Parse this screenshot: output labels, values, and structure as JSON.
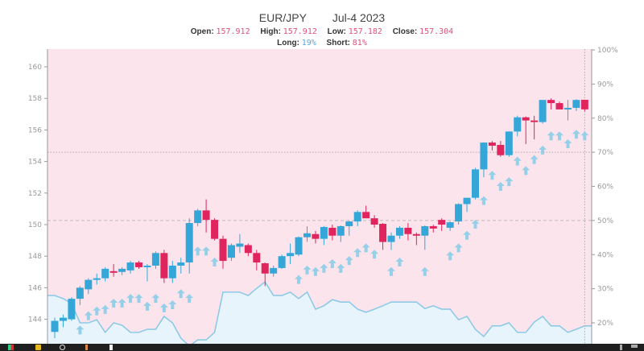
{
  "header": {
    "symbol": "EUR/JPY",
    "date": "Jul-4 2023",
    "open_label": "Open:",
    "open": "157.912",
    "high_label": "High:",
    "high": "157.912",
    "low_label": "Low:",
    "low": "157.182",
    "close_label": "Close:",
    "close": "157.304",
    "long_label": "Long:",
    "long": "19%",
    "short_label": "Short:",
    "short": "81%"
  },
  "colors": {
    "up": "#34a6d8",
    "down": "#e0245e",
    "short_bg": "#fce4ec",
    "long_bg": "#e8f4fb",
    "sentiment_line": "#8ecae6",
    "signal": "#95cfe8"
  },
  "chart_data": {
    "type": "candlestick",
    "title": "EUR/JPY",
    "y_left": {
      "ticks": [
        144,
        146,
        148,
        150,
        152,
        154,
        156,
        158,
        160
      ],
      "tick_labels": [
        "144",
        "146",
        "148",
        "150",
        "152",
        "154",
        "156",
        "158",
        "160"
      ]
    },
    "y_right": {
      "ticks": [
        20,
        30,
        40,
        50,
        60,
        70,
        80,
        90,
        100
      ],
      "tick_labels": [
        "20%",
        "30%",
        "40%",
        "50%",
        "60%",
        "70%",
        "80%",
        "90%",
        "100%"
      ]
    },
    "reference_lines_pct": [
      50,
      70
    ],
    "candles": [
      [
        143.2,
        144.1,
        142.8,
        143.9
      ],
      [
        143.9,
        144.3,
        143.5,
        144.1
      ],
      [
        144.0,
        145.4,
        143.9,
        145.3
      ],
      [
        145.3,
        146.1,
        144.9,
        146.0
      ],
      [
        145.9,
        146.6,
        145.6,
        146.5
      ],
      [
        146.5,
        146.9,
        146.2,
        146.6
      ],
      [
        146.6,
        147.3,
        146.4,
        147.2
      ],
      [
        147.05,
        147.5,
        146.7,
        146.95
      ],
      [
        147.0,
        147.3,
        146.8,
        147.2
      ],
      [
        147.1,
        147.7,
        146.9,
        147.6
      ],
      [
        147.6,
        147.7,
        147.2,
        147.3
      ],
      [
        147.3,
        147.5,
        146.4,
        147.4
      ],
      [
        147.4,
        148.3,
        147.2,
        148.2
      ],
      [
        148.2,
        148.4,
        146.3,
        146.6
      ],
      [
        146.6,
        147.7,
        146.3,
        147.4
      ],
      [
        147.4,
        147.9,
        146.9,
        147.6
      ],
      [
        147.6,
        150.4,
        146.9,
        150.1
      ],
      [
        150.1,
        151.0,
        149.9,
        150.9
      ],
      [
        150.9,
        151.6,
        149.5,
        150.3
      ],
      [
        150.3,
        150.4,
        149.0,
        149.1
      ],
      [
        149.1,
        149.3,
        147.2,
        147.7
      ],
      [
        147.9,
        148.8,
        147.7,
        148.7
      ],
      [
        148.6,
        149.4,
        148.2,
        148.8
      ],
      [
        148.7,
        148.8,
        148.0,
        148.2
      ],
      [
        148.2,
        148.4,
        147.1,
        147.6
      ],
      [
        147.55,
        147.6,
        146.1,
        146.9
      ],
      [
        146.9,
        147.4,
        146.7,
        147.25
      ],
      [
        147.25,
        148.1,
        147.2,
        148.0
      ],
      [
        148.0,
        148.8,
        147.5,
        148.2
      ],
      [
        148.1,
        149.25,
        148.0,
        149.2
      ],
      [
        149.2,
        149.9,
        148.9,
        149.45
      ],
      [
        149.4,
        149.6,
        148.8,
        149.1
      ],
      [
        149.1,
        149.9,
        148.7,
        149.85
      ],
      [
        149.8,
        150.0,
        149.0,
        149.3
      ],
      [
        149.3,
        149.95,
        148.9,
        149.9
      ],
      [
        149.9,
        150.25,
        149.3,
        150.2
      ],
      [
        150.2,
        150.9,
        149.9,
        150.8
      ],
      [
        150.8,
        151.2,
        150.4,
        150.4
      ],
      [
        150.4,
        150.6,
        149.8,
        150.0
      ],
      [
        150.05,
        150.1,
        148.4,
        148.9
      ],
      [
        148.9,
        149.5,
        148.4,
        149.3
      ],
      [
        149.3,
        149.9,
        149.1,
        149.8
      ],
      [
        149.8,
        150.1,
        149.0,
        149.4
      ],
      [
        149.4,
        149.5,
        148.7,
        149.3
      ],
      [
        149.3,
        149.95,
        148.4,
        149.9
      ],
      [
        149.9,
        150.0,
        149.5,
        149.75
      ],
      [
        150.3,
        150.4,
        149.6,
        150.0
      ],
      [
        149.8,
        150.2,
        149.6,
        150.15
      ],
      [
        150.2,
        151.35,
        150.0,
        151.3
      ],
      [
        151.3,
        151.7,
        150.8,
        151.7
      ],
      [
        151.7,
        153.6,
        151.6,
        153.5
      ],
      [
        153.5,
        155.2,
        153.0,
        155.2
      ],
      [
        155.2,
        155.3,
        154.7,
        155.0
      ],
      [
        155.05,
        155.3,
        154.3,
        154.4
      ],
      [
        154.4,
        155.9,
        154.3,
        155.9
      ],
      [
        155.9,
        156.9,
        155.6,
        156.8
      ],
      [
        156.8,
        156.85,
        155.1,
        156.6
      ],
      [
        156.6,
        156.9,
        155.4,
        156.5
      ],
      [
        156.5,
        157.9,
        156.4,
        157.9
      ],
      [
        157.9,
        158.0,
        157.3,
        157.7
      ],
      [
        157.7,
        157.8,
        157.3,
        157.3
      ],
      [
        157.3,
        157.9,
        156.6,
        157.4
      ],
      [
        157.4,
        157.95,
        157.2,
        157.9
      ],
      [
        157.912,
        157.912,
        157.182,
        157.304
      ]
    ],
    "long_pct": [
      28.0,
      27.1,
      25.7,
      20.0,
      20.0,
      20.9,
      17.2,
      20.0,
      19.3,
      17.2,
      17.2,
      18.1,
      18.1,
      21.9,
      20.0,
      15.5,
      13.2,
      15.0,
      15.0,
      17.2,
      29.0,
      29.0,
      29.0,
      28.0,
      30.1,
      32.0,
      28.0,
      28.0,
      29.0,
      27.1,
      29.0,
      24.0,
      25.0,
      26.8,
      26.1,
      26.1,
      24.0,
      23.1,
      24.0,
      25.0,
      26.1,
      26.1,
      26.1,
      26.1,
      24.2,
      25.0,
      24.0,
      24.0,
      20.9,
      21.9,
      18.1,
      16.0,
      19.1,
      19.1,
      20.0,
      17.2,
      17.2,
      20.2,
      21.9,
      19.1,
      19.1,
      17.2,
      18.1,
      19.1
    ],
    "signals": [
      [
        3,
        143.3
      ],
      [
        4,
        144.2
      ],
      [
        5,
        144.5
      ],
      [
        6,
        144.6
      ],
      [
        7,
        145.0
      ],
      [
        8,
        145.0
      ],
      [
        9,
        145.3
      ],
      [
        10,
        145.3
      ],
      [
        11,
        144.8
      ],
      [
        12,
        145.3
      ],
      [
        13,
        144.7
      ],
      [
        14,
        144.9
      ],
      [
        15,
        145.6
      ],
      [
        16,
        145.3
      ],
      [
        17,
        148.3
      ],
      [
        18,
        148.3
      ],
      [
        19,
        147.6
      ],
      [
        29,
        146.5
      ],
      [
        30,
        147.1
      ],
      [
        31,
        147.0
      ],
      [
        32,
        147.2
      ],
      [
        33,
        147.5
      ],
      [
        34,
        147.2
      ],
      [
        35,
        147.7
      ],
      [
        36,
        148.2
      ],
      [
        37,
        148.5
      ],
      [
        38,
        148.1
      ],
      [
        40,
        147.0
      ],
      [
        41,
        147.6
      ],
      [
        44,
        147.0
      ],
      [
        47,
        148.0
      ],
      [
        48,
        148.5
      ],
      [
        49,
        149.3
      ],
      [
        50,
        150.0
      ],
      [
        51,
        151.5
      ],
      [
        52,
        153.1
      ],
      [
        53,
        152.4
      ],
      [
        54,
        152.7
      ],
      [
        55,
        154.0
      ],
      [
        56,
        153.4
      ],
      [
        57,
        154.1
      ],
      [
        58,
        154.7
      ],
      [
        59,
        155.6
      ],
      [
        60,
        155.6
      ],
      [
        61,
        155.1
      ],
      [
        62,
        155.7
      ],
      [
        63,
        155.6
      ]
    ]
  }
}
